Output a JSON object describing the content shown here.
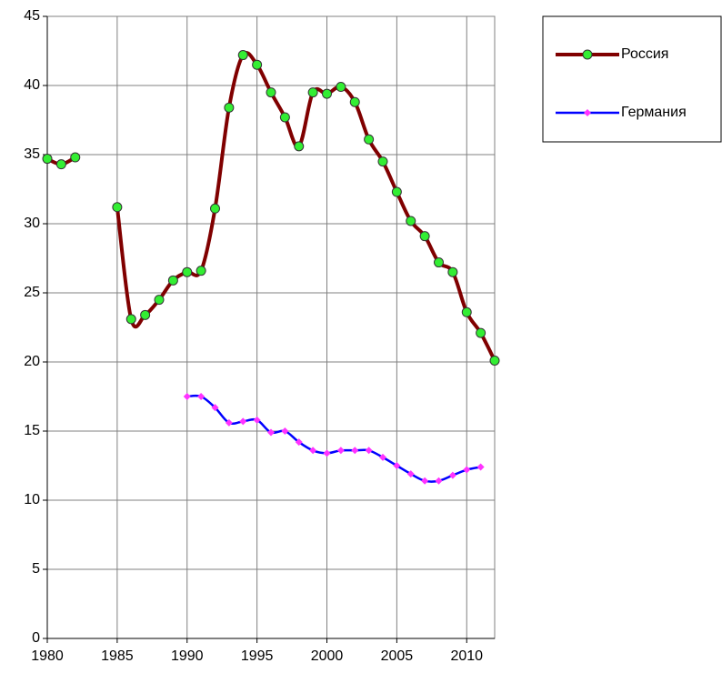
{
  "chart_data": {
    "type": "line",
    "x": [
      1980,
      1981,
      1982,
      1983,
      1984,
      1985,
      1986,
      1987,
      1988,
      1989,
      1990,
      1991,
      1992,
      1993,
      1994,
      1995,
      1996,
      1997,
      1998,
      1999,
      2000,
      2001,
      2002,
      2003,
      2004,
      2005,
      2006,
      2007,
      2008,
      2009,
      2010,
      2011,
      2012
    ],
    "series": [
      {
        "name": "Россия",
        "color": "#800000",
        "marker_color": "#33ee33",
        "values": [
          34.7,
          34.3,
          34.8,
          null,
          null,
          31.2,
          23.1,
          23.4,
          24.5,
          25.9,
          26.5,
          26.6,
          31.1,
          38.4,
          42.2,
          41.5,
          39.5,
          37.7,
          35.6,
          39.5,
          39.4,
          39.9,
          38.8,
          36.1,
          34.5,
          32.3,
          30.2,
          29.1,
          27.2,
          26.5,
          23.6,
          22.1,
          20.1
        ]
      },
      {
        "name": "Германия",
        "color": "#0000ff",
        "marker_color": "#ff33ff",
        "values": [
          null,
          null,
          null,
          null,
          null,
          null,
          null,
          null,
          null,
          null,
          17.5,
          17.5,
          16.7,
          15.6,
          15.7,
          15.8,
          14.9,
          15.0,
          14.2,
          13.6,
          13.4,
          13.6,
          13.6,
          13.6,
          13.1,
          12.5,
          11.9,
          11.4,
          11.4,
          11.8,
          12.2,
          12.4,
          null
        ]
      }
    ],
    "xlim": [
      1980,
      2012
    ],
    "xticks": [
      1980,
      1985,
      1990,
      1995,
      2000,
      2005,
      2010
    ],
    "ylim": [
      0,
      45
    ],
    "yticks": [
      0,
      5,
      10,
      15,
      20,
      25,
      30,
      35,
      40,
      45
    ],
    "grid": true,
    "legend": "right"
  }
}
